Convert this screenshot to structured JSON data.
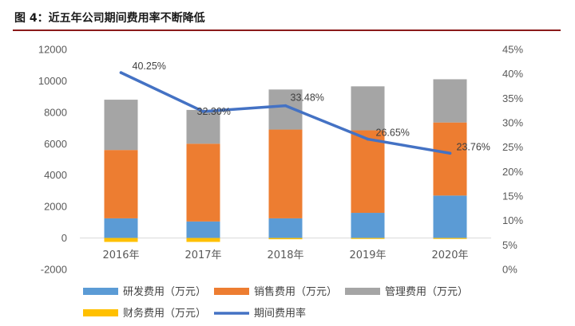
{
  "figure": {
    "title": "图 4：近五年公司期间费用率不断降低"
  },
  "chart_data": {
    "type": "bar",
    "stacked": true,
    "categories": [
      "2016年",
      "2017年",
      "2018年",
      "2019年",
      "2020年"
    ],
    "series": [
      {
        "name": "研发费用（万元）",
        "color": "#5b9bd5",
        "values": [
          1250,
          1050,
          1250,
          1600,
          2700
        ],
        "axis": "left"
      },
      {
        "name": "销售费用（万元）",
        "color": "#ed7d31",
        "values": [
          4350,
          4950,
          5650,
          5250,
          4650
        ],
        "axis": "left"
      },
      {
        "name": "管理费用（万元）",
        "color": "#a5a5a5",
        "values": [
          3200,
          2150,
          2550,
          2800,
          2750
        ],
        "axis": "left"
      },
      {
        "name": "财务费用（万元）",
        "color": "#ffc000",
        "values": [
          -250,
          -250,
          -80,
          -60,
          -60
        ],
        "axis": "left"
      },
      {
        "name": "期间费用率",
        "type": "line",
        "color": "#4472c4",
        "axis": "right",
        "values": [
          40.25,
          32.3,
          33.48,
          26.65,
          23.76
        ],
        "labels": [
          "40.25%",
          "32.30%",
          "33.48%",
          "26.65%",
          "23.76%"
        ]
      }
    ],
    "y_left": {
      "min": -2000,
      "max": 12000,
      "step": 2000,
      "ticks": [
        "-2000",
        "0",
        "2000",
        "4000",
        "6000",
        "8000",
        "10000",
        "12000"
      ]
    },
    "y_right": {
      "min": 0,
      "max": 45,
      "step": 5,
      "ticks": [
        "0%",
        "5%",
        "10%",
        "15%",
        "20%",
        "25%",
        "30%",
        "35%",
        "40%",
        "45%"
      ]
    },
    "grid": false,
    "legend_position": "bottom"
  }
}
